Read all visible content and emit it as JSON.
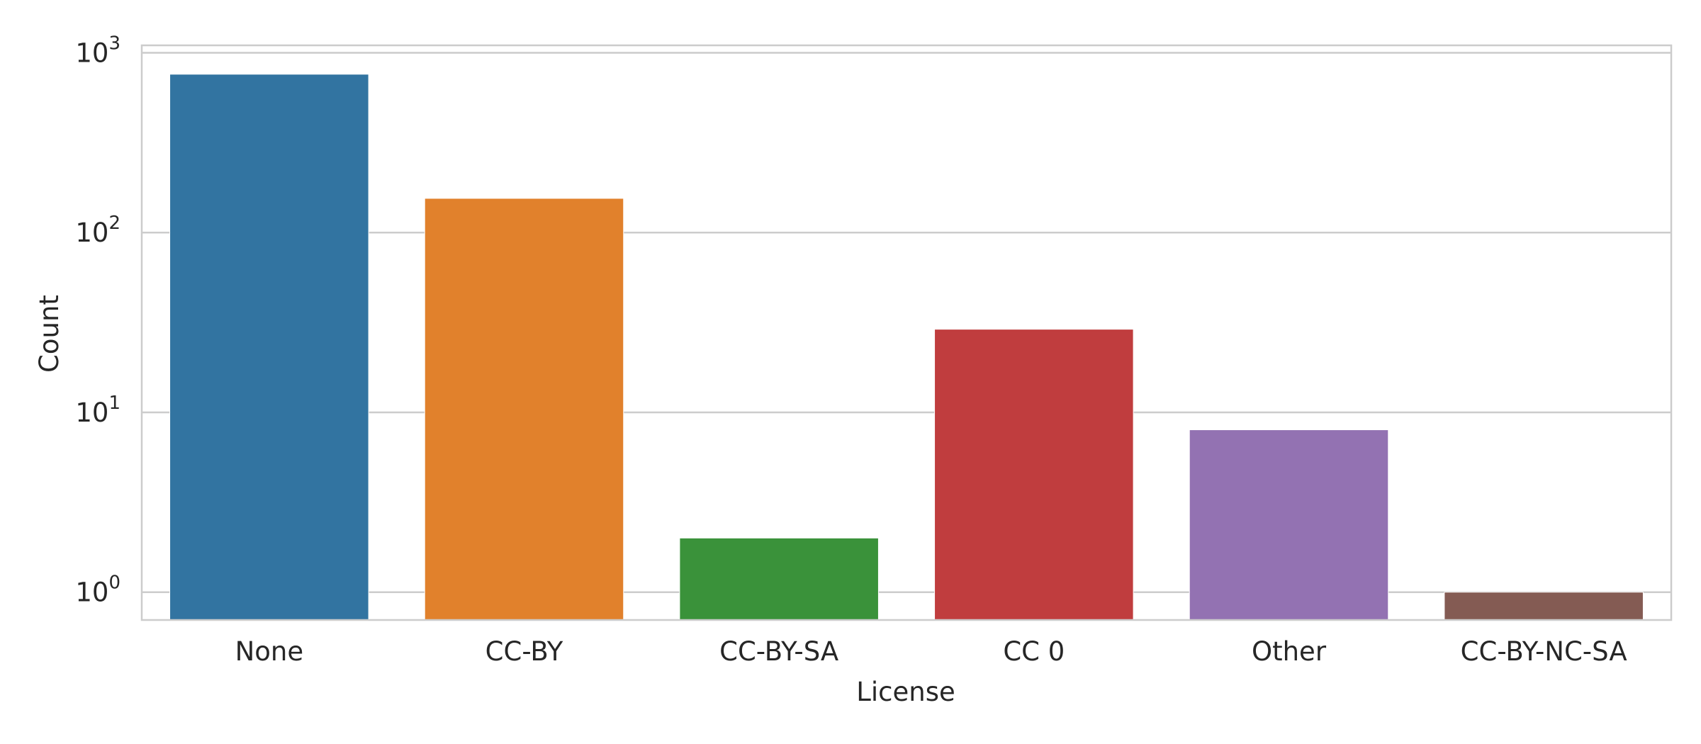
{
  "chart_data": {
    "type": "bar",
    "title": "",
    "xlabel": "License",
    "ylabel": "Count",
    "yscale": "log",
    "ylim": [
      0.7,
      1100
    ],
    "yticks": [
      {
        "value": 1,
        "base": "10",
        "exp": "0"
      },
      {
        "value": 10,
        "base": "10",
        "exp": "1"
      },
      {
        "value": 100,
        "base": "10",
        "exp": "2"
      },
      {
        "value": 1000,
        "base": "10",
        "exp": "3"
      }
    ],
    "grid": true,
    "categories": [
      "None",
      "CC-BY",
      "CC-BY-SA",
      "CC 0",
      "Other",
      "CC-BY-NC-SA"
    ],
    "values": [
      760,
      155,
      2,
      29,
      8,
      1
    ],
    "colors": [
      "#3274a1",
      "#e1812c",
      "#3a923a",
      "#c03d3e",
      "#9372b2",
      "#845b53"
    ],
    "style": {
      "background": "#ffffff",
      "grid_color": "#cccccc",
      "spine_color": "#cccccc",
      "text_color": "#262626"
    }
  }
}
